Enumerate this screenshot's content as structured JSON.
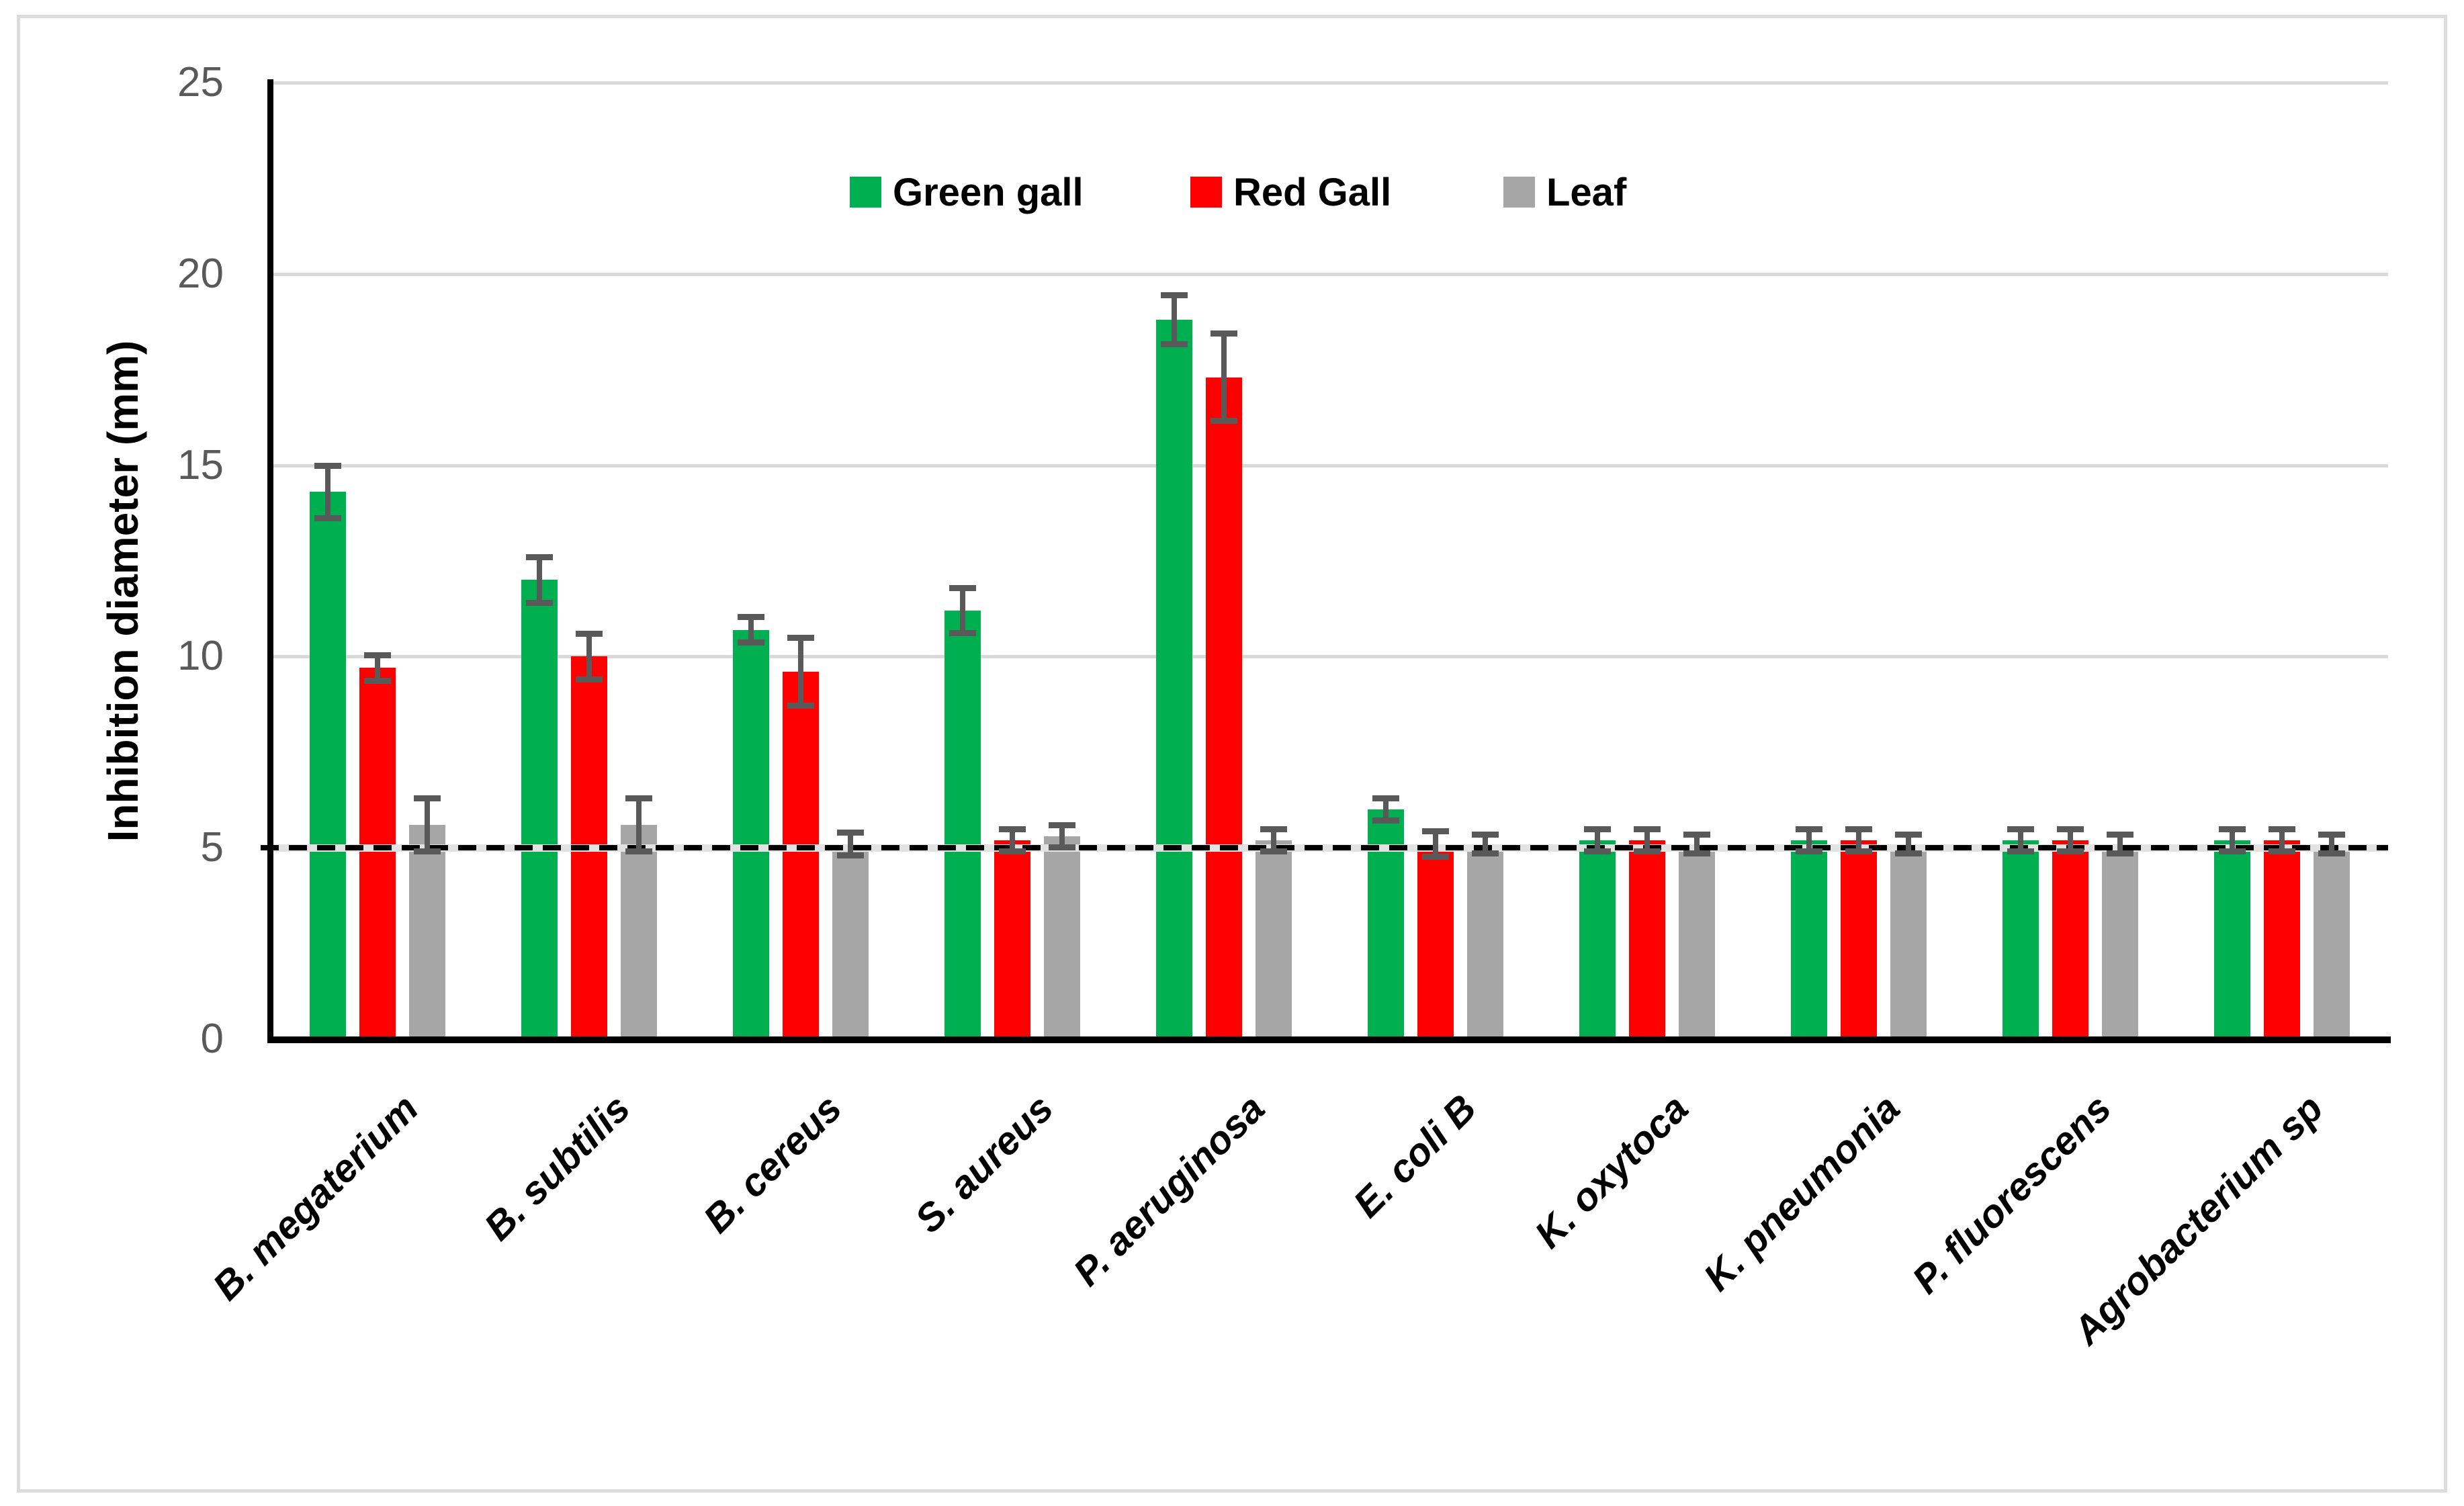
{
  "chart_data": {
    "type": "bar",
    "title": "",
    "xlabel": "",
    "ylabel": "Inhibition diameter (mm)",
    "ylim": [
      0,
      25
    ],
    "yticks": [
      0,
      5,
      10,
      15,
      20,
      25
    ],
    "grid": "horizontal",
    "gridline_values": [
      10,
      15,
      20,
      25
    ],
    "legend_position": "top-center",
    "reference_line": {
      "y": 5,
      "style": "dashed",
      "color": "#000000"
    },
    "categories": [
      "B. megaterium",
      "B. subtilis",
      "B. cereus",
      "S. aureus",
      "P. aeruginosa",
      "E. coli B",
      "K. oxytoca",
      "K. pneumonia",
      "P. fluorescens",
      "Agrobacterium sp"
    ],
    "series": [
      {
        "name": "Green gall",
        "color": "#00B050",
        "values": [
          14.3,
          12.0,
          10.7,
          11.2,
          18.8,
          6.0,
          5.2,
          5.2,
          5.2,
          5.2
        ],
        "errors": [
          0.7,
          0.6,
          0.35,
          0.6,
          0.65,
          0.3,
          0.3,
          0.3,
          0.3,
          0.3
        ]
      },
      {
        "name": "Red Gall",
        "color": "#FF0000",
        "values": [
          9.7,
          10.0,
          9.6,
          5.2,
          17.3,
          5.1,
          5.2,
          5.2,
          5.2,
          5.2
        ],
        "errors": [
          0.35,
          0.6,
          0.9,
          0.3,
          1.15,
          0.35,
          0.3,
          0.3,
          0.3,
          0.3
        ]
      },
      {
        "name": "Leaf",
        "color": "#A6A6A6",
        "values": [
          5.6,
          5.6,
          5.1,
          5.3,
          5.2,
          5.1,
          5.1,
          5.1,
          5.1,
          5.1
        ],
        "errors": [
          0.7,
          0.7,
          0.3,
          0.3,
          0.3,
          0.25,
          0.25,
          0.25,
          0.25,
          0.25
        ]
      }
    ]
  },
  "colors": {
    "gridline": "#d9d9d9",
    "error_bar": "#595959",
    "tick_label": "#595959",
    "axis": "#000000",
    "frame_border": "#dcdcdc",
    "background": "#ffffff"
  }
}
